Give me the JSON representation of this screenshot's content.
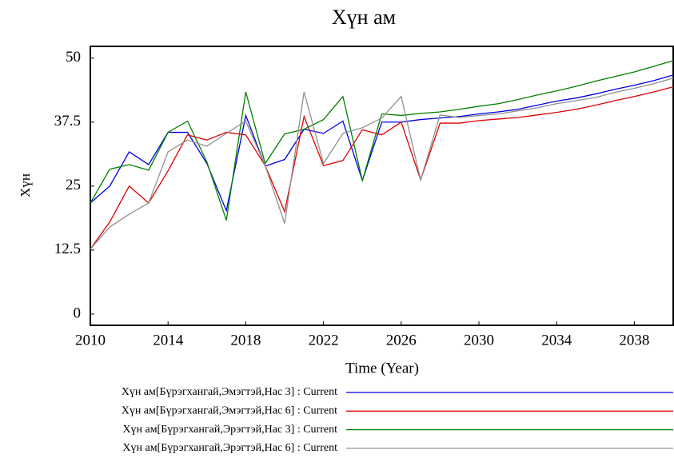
{
  "chart_data": {
    "type": "line",
    "title": "Хүн ам",
    "ylabel": "Хүн",
    "xlabel": "Time (Year)",
    "x": [
      2010,
      2011,
      2012,
      2013,
      2014,
      2015,
      2016,
      2017,
      2018,
      2019,
      2020,
      2021,
      2022,
      2023,
      2024,
      2025,
      2026,
      2027,
      2028,
      2029,
      2030,
      2031,
      2032,
      2033,
      2034,
      2035,
      2036,
      2037,
      2038,
      2039,
      2040
    ],
    "xlim": [
      2010,
      2040
    ],
    "xticks": [
      2010,
      2014,
      2018,
      2022,
      2026,
      2030,
      2034,
      2038
    ],
    "ylim": [
      -2.2,
      52.3
    ],
    "yticks": [
      0,
      12.5,
      25,
      37.5,
      50
    ],
    "series": [
      {
        "name": "Хүн ам[Бүрэгхангай,Эмэгтэй,Нас 3] : Current",
        "color": "#0000e0",
        "values": [
          21.7,
          25,
          31.7,
          29.2,
          35.5,
          35.5,
          29.4,
          20.2,
          38.8,
          28.9,
          30.2,
          36.1,
          35.3,
          37.7,
          26.1,
          37.5,
          37.5,
          38,
          38.3,
          38.6,
          39.1,
          39.5,
          40,
          40.8,
          41.6,
          42.2,
          43,
          43.9,
          44.7,
          45.6,
          46.7
        ]
      },
      {
        "name": "Хүн ам[Бүрэгхангай,Эмэгтэй,Нас 6] : Current",
        "color": "#e00000",
        "values": [
          12.7,
          18,
          25,
          21.7,
          28,
          35,
          34,
          35.5,
          35,
          29,
          20,
          38.6,
          29,
          30,
          36,
          35,
          37.5,
          26.2,
          37.3,
          37.3,
          37.8,
          38.1,
          38.4,
          38.9,
          39.4,
          40,
          40.8,
          41.7,
          42.5,
          43.4,
          44.4
        ]
      },
      {
        "name": "Хүн ам[Бүрэгхангай,Эрэгтэй,Нас 3] : Current",
        "color": "#008000",
        "values": [
          21.7,
          28.3,
          29.2,
          28.1,
          35.5,
          37.7,
          29.7,
          18.3,
          43.4,
          29.4,
          35.2,
          36.1,
          38,
          42.5,
          26.1,
          39.1,
          38.8,
          39.2,
          39.5,
          40,
          40.6,
          41.1,
          41.9,
          42.8,
          43.6,
          44.5,
          45.5,
          46.4,
          47.3,
          48.4,
          49.5
        ]
      },
      {
        "name": "Хүн ам[Бүрэгхангай,Эрэгтэй,Нас 6] : Current",
        "color": "#909090",
        "values": [
          12.7,
          17,
          19.5,
          21.7,
          31.7,
          34,
          32.8,
          35.3,
          37.7,
          29,
          17.7,
          43.4,
          29.4,
          35.3,
          36.4,
          38.3,
          42.5,
          26.2,
          38.9,
          38.4,
          38.8,
          39.1,
          39.7,
          40.3,
          41.1,
          41.7,
          42.3,
          43.3,
          44.1,
          45,
          46.1
        ]
      }
    ]
  }
}
